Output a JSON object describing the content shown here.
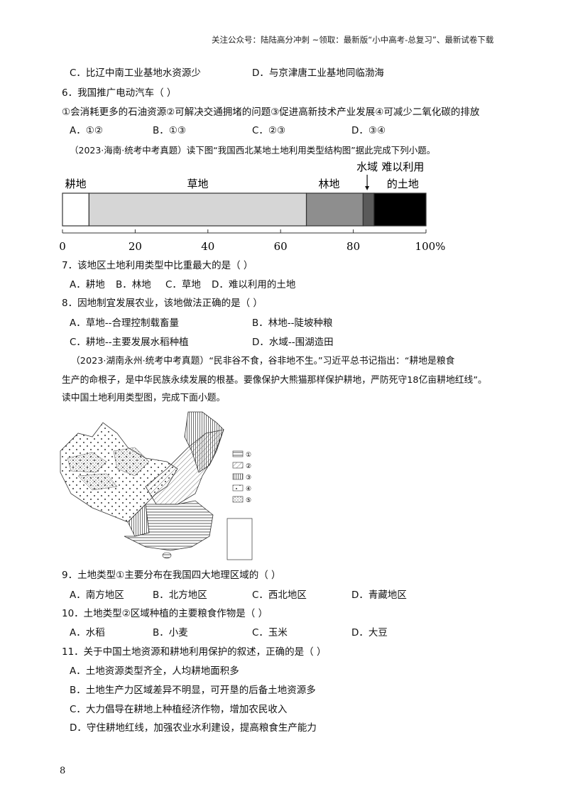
{
  "header": {
    "text": "关注公众号：陆陆高分冲刺  ~领取：最新版“小中高考-总复习”、最新试卷下载"
  },
  "q5_tail": {
    "C": "C．比辽中南工业基地水资源少",
    "D": "D．与京津唐工业基地同临渤海"
  },
  "q6": {
    "stem": "6．我国推广电动汽车（    ）",
    "statements": "①会消耗更多的石油资源②可解决交通拥堵的问题③促进高新技术产业发展④可减少二氧化碳的排放",
    "options": [
      "A．①②",
      "B．①③",
      "C．②③",
      "D．③④"
    ]
  },
  "intro1": "（2023·海南·统考中考真题）读下图“我国西北某地土地利用类型结构图”据此完成下列小题。",
  "chart_data": {
    "type": "bar",
    "orientation": "horizontal-stacked",
    "categories": [
      "耕地",
      "草地",
      "林地",
      "水域",
      "难以利用的土地"
    ],
    "values": [
      7.3,
      59.8,
      15.6,
      3,
      14.3
    ],
    "colors": [
      "#ffffff",
      "#d6d6d6",
      "#8e8e8e",
      "#5a5a5a",
      "#000000"
    ],
    "labels": {
      "c0": "耕地",
      "c1": "草地",
      "c2": "林地",
      "c3": "水域",
      "c4a": "难以利用",
      "c4b": "的土地"
    },
    "xticks": [
      "0",
      "20",
      "40",
      "60",
      "80",
      "100%"
    ],
    "xlim": [
      0,
      100
    ],
    "xlabel": "",
    "ylabel": "",
    "title": ""
  },
  "q7": {
    "stem": "7．该地区土地利用类型中比重最大的是（    ）",
    "options": [
      "A．耕地",
      "B．林地",
      "C．草地",
      "D．难以利用的土地"
    ]
  },
  "q8": {
    "stem": "8．因地制宜发展农业，该地做法正确的是（    ）",
    "options": [
      "A．草地--合理控制载畜量",
      "B．林地--陡坡种粮",
      "C．耕地--主要发展水稻种植",
      "D．水域--围湖造田"
    ]
  },
  "intro2": [
    "（2023·湖南永州·统考中考真题）“民非谷不食，谷非地不生。”习近平总书记指出：“耕地是粮食",
    "生产的命根子，是中华民族永续发展的根基。要像保护大熊猫那样保护耕地，严防死守18亿亩耕地红线”。",
    "读中国土地利用类型图，完成下面小题。"
  ],
  "map": {
    "legend": [
      "①",
      "②",
      "③",
      "④",
      "⑤"
    ]
  },
  "q9": {
    "stem": "9．土地类型①主要分布在我国四大地理区域的（    ）",
    "options": [
      "A．南方地区",
      "B．北方地区",
      "C．西北地区",
      "D．青藏地区"
    ]
  },
  "q10": {
    "stem": "10．土地类型②区域种植的主要粮食作物是（    ）",
    "options": [
      "A．水稻",
      "B．小麦",
      "C．玉米",
      "D．大豆"
    ]
  },
  "q11": {
    "stem": "11．关于中国土地资源和耕地利用保护的叙述，正确的是（    ）",
    "options": [
      "A．土地资源类型齐全，人均耕地面积多",
      "B．土地生产力区域差异不明显，可开垦的后备土地资源多",
      "C．大力倡导在耕地上种植经济作物，增加农民收入",
      "D．守住耕地红线，加强农业水利建设，提高粮食生产能力"
    ]
  },
  "page_number": "8"
}
